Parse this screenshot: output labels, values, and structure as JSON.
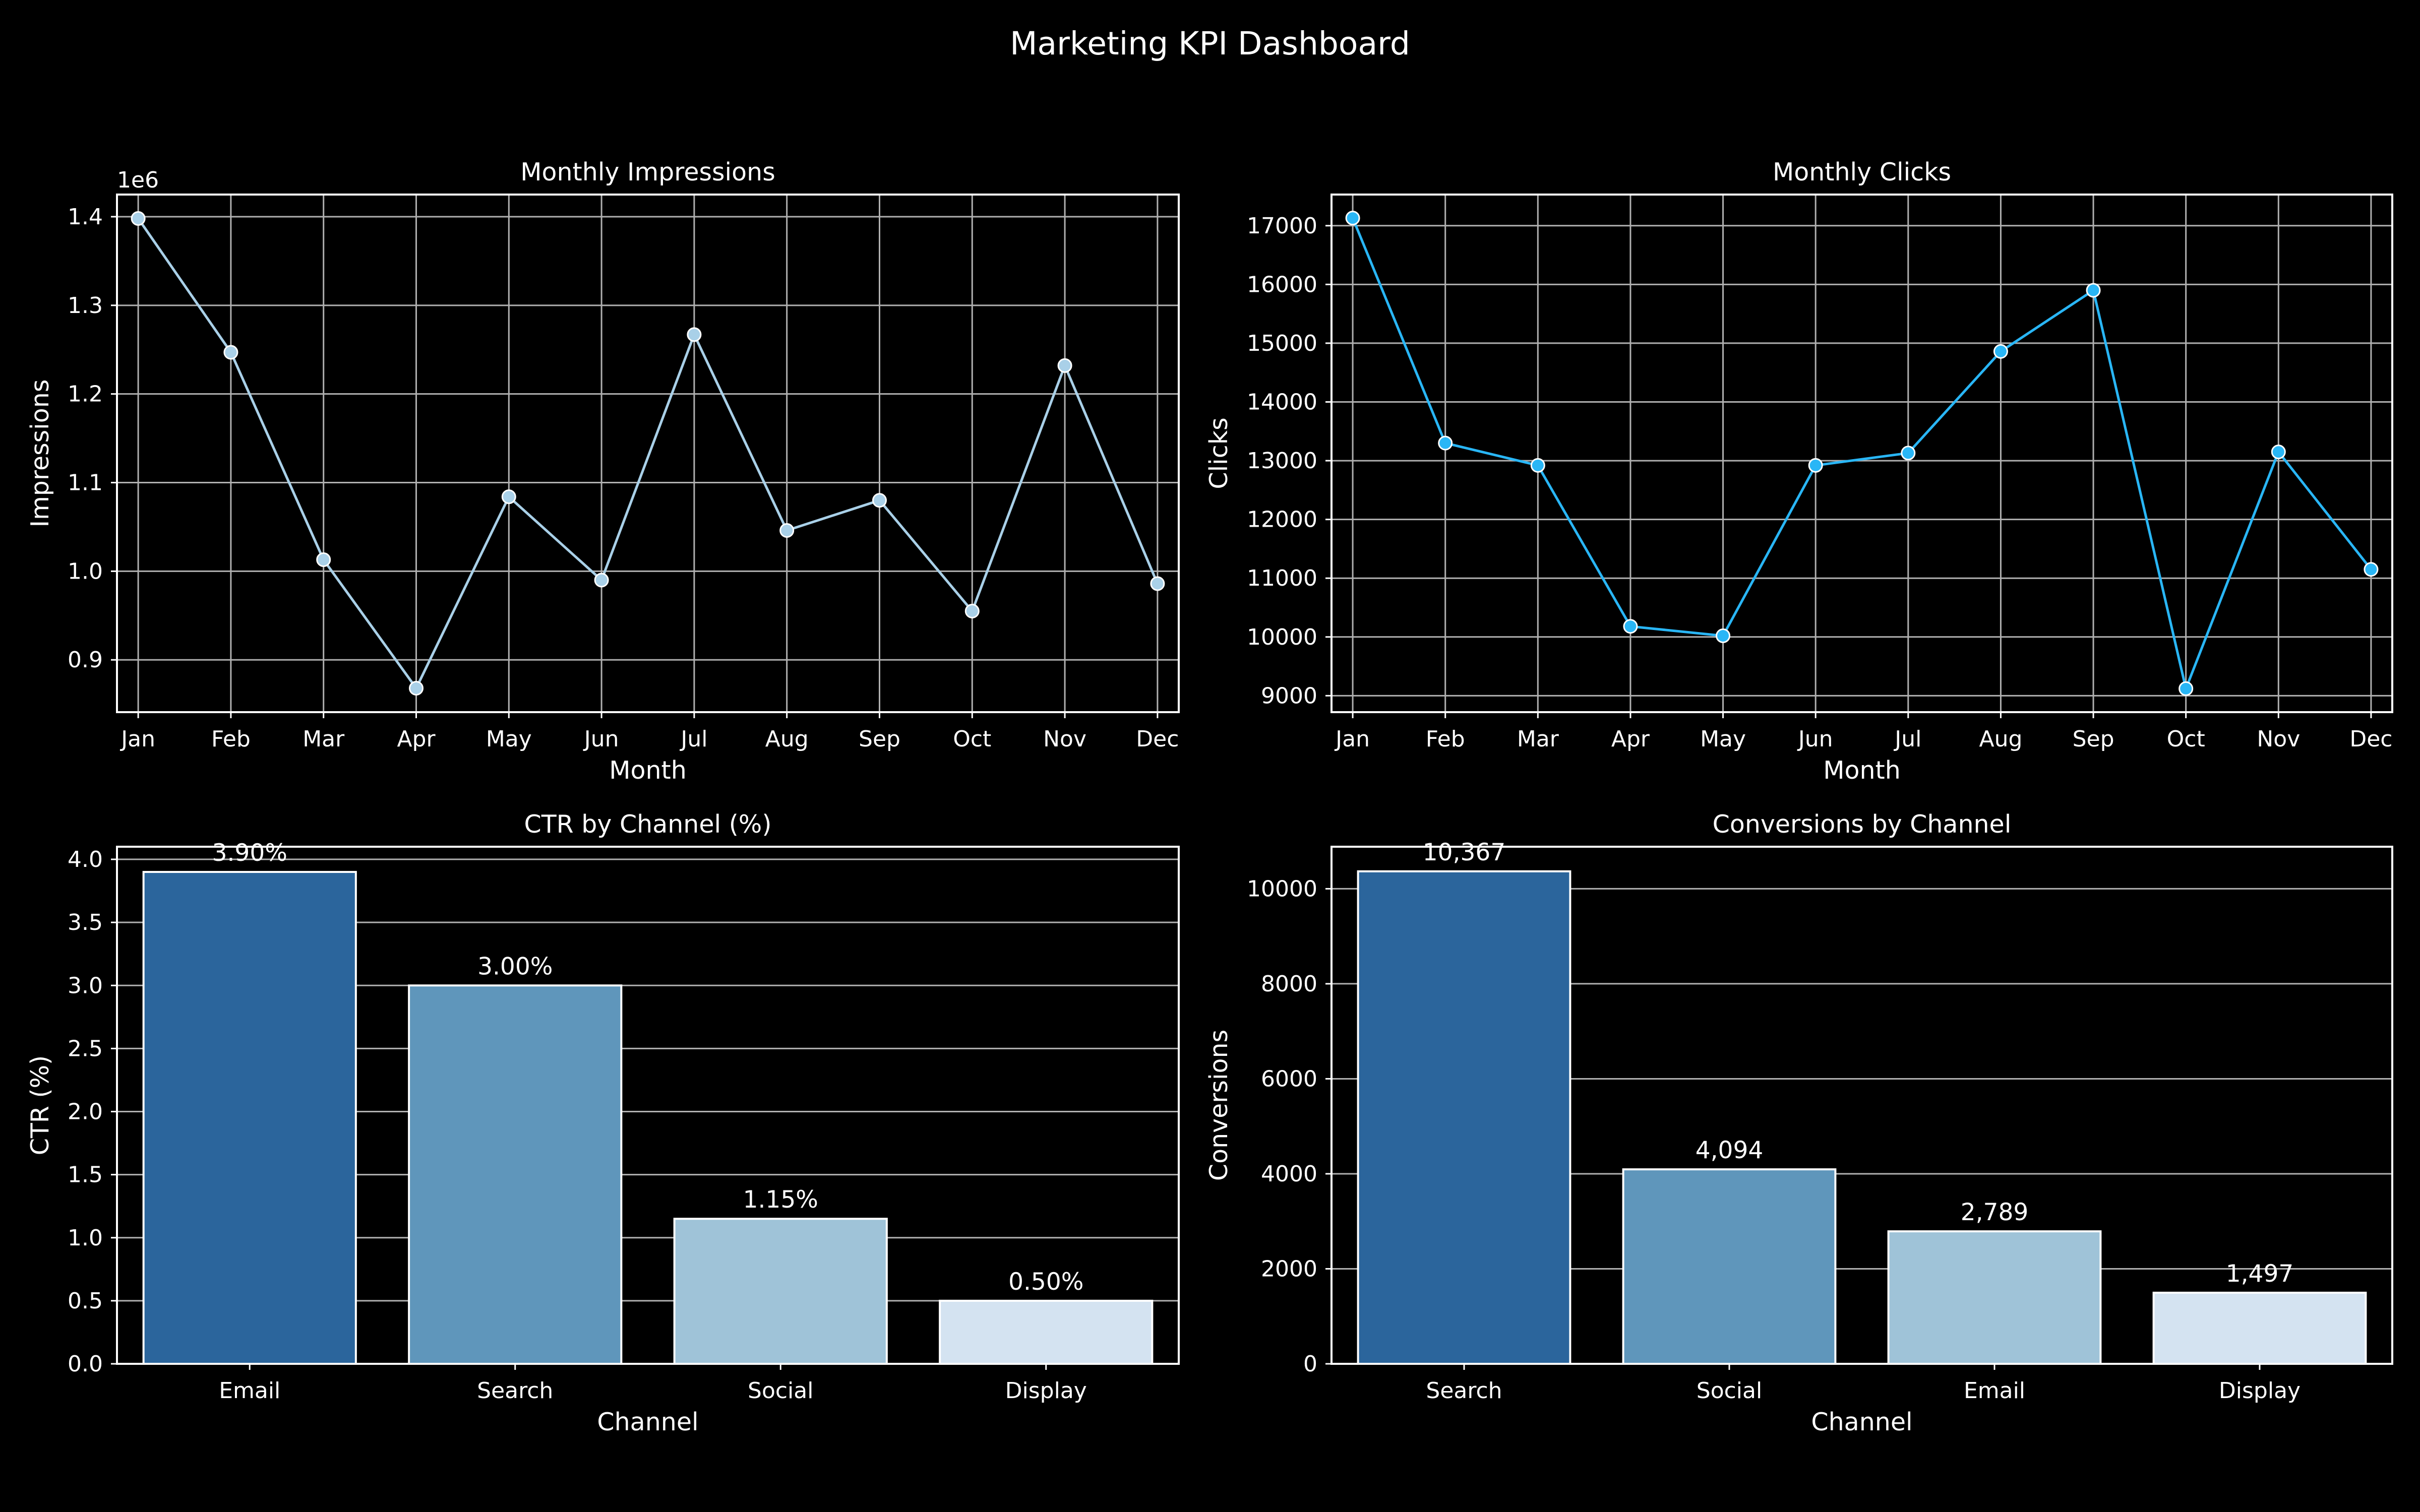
{
  "suptitle": "Marketing KPI Dashboard",
  "theme": {
    "background": "#000000",
    "text": "#ffffff",
    "grid": "#b0b0b0"
  },
  "chart_data": [
    {
      "id": "impressions",
      "type": "line",
      "title": "Monthly Impressions",
      "xlabel": "Month",
      "ylabel": "Impressions",
      "offset_text": "1e6",
      "categories": [
        "Jan",
        "Feb",
        "Mar",
        "Apr",
        "May",
        "Jun",
        "Jul",
        "Aug",
        "Sep",
        "Oct",
        "Nov",
        "Dec"
      ],
      "values": [
        1.398,
        1.247,
        1.013,
        0.868,
        1.084,
        0.99,
        1.267,
        1.046,
        1.08,
        0.955,
        1.232,
        0.986
      ],
      "yticks": [
        "0.9",
        "1.0",
        "1.1",
        "1.2",
        "1.3",
        "1.4"
      ],
      "ytick_values": [
        0.9,
        1.0,
        1.1,
        1.2,
        1.3,
        1.4
      ],
      "ylim": [
        0.841,
        1.425
      ],
      "color": "#a9d0e8",
      "grid": true
    },
    {
      "id": "clicks",
      "type": "line",
      "title": "Monthly Clicks",
      "xlabel": "Month",
      "ylabel": "Clicks",
      "categories": [
        "Jan",
        "Feb",
        "Mar",
        "Apr",
        "May",
        "Jun",
        "Jul",
        "Aug",
        "Sep",
        "Oct",
        "Nov",
        "Dec"
      ],
      "values": [
        17130,
        13300,
        12920,
        10180,
        10020,
        12920,
        13130,
        14860,
        15900,
        9120,
        13150,
        11150
      ],
      "yticks": [
        "9000",
        "10000",
        "11000",
        "12000",
        "13000",
        "14000",
        "15000",
        "16000",
        "17000"
      ],
      "ytick_values": [
        9000,
        10000,
        11000,
        12000,
        13000,
        14000,
        15000,
        16000,
        17000
      ],
      "ylim": [
        8720,
        17530
      ],
      "color": "#29b6f6",
      "grid": true
    },
    {
      "id": "ctr",
      "type": "bar",
      "title": "CTR by Channel (%)",
      "xlabel": "Channel",
      "ylabel": "CTR (%)",
      "categories": [
        "Email",
        "Search",
        "Social",
        "Display"
      ],
      "values": [
        3.9,
        3.0,
        1.15,
        0.5
      ],
      "labels": [
        "3.90%",
        "3.00%",
        "1.15%",
        "0.50%"
      ],
      "yticks": [
        "0.0",
        "0.5",
        "1.0",
        "1.5",
        "2.0",
        "2.5",
        "3.0",
        "3.5",
        "4.0"
      ],
      "ytick_values": [
        0,
        0.5,
        1.0,
        1.5,
        2.0,
        2.5,
        3.0,
        3.5,
        4.0
      ],
      "ylim": [
        0,
        4.1
      ],
      "colors": [
        "#2b659c",
        "#5f96bb",
        "#9fc3d8",
        "#d4e3f1"
      ],
      "grid": true
    },
    {
      "id": "conversions",
      "type": "bar",
      "title": "Conversions by Channel",
      "xlabel": "Channel",
      "ylabel": "Conversions",
      "categories": [
        "Search",
        "Social",
        "Email",
        "Display"
      ],
      "values": [
        10367,
        4094,
        2789,
        1497
      ],
      "labels": [
        "10,367",
        "4,094",
        "2,789",
        "1,497"
      ],
      "yticks": [
        "0",
        "2000",
        "4000",
        "6000",
        "8000",
        "10000"
      ],
      "ytick_values": [
        0,
        2000,
        4000,
        6000,
        8000,
        10000
      ],
      "ylim": [
        0,
        10885
      ],
      "colors": [
        "#2b659c",
        "#5f96bb",
        "#9fc3d8",
        "#d4e3f1"
      ],
      "grid": true
    }
  ]
}
